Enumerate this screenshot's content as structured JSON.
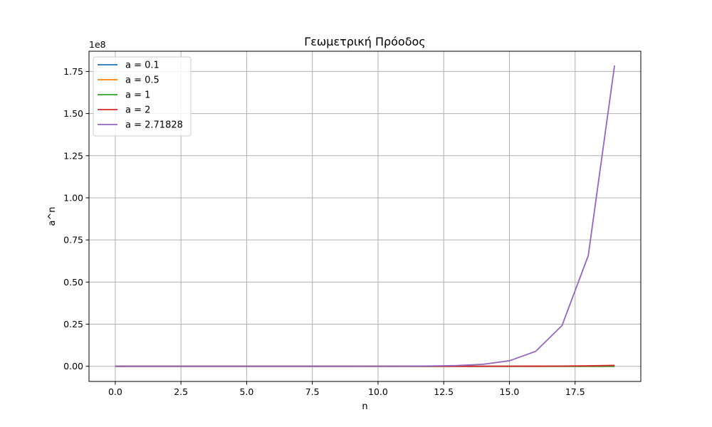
{
  "chart_data": {
    "type": "line",
    "title": "Γεωμετρική Πρόοδος",
    "xlabel": "n",
    "ylabel": "a^n",
    "y_offset_text": "1e8",
    "y_scale": 100000000,
    "xlim": [
      -1,
      20
    ],
    "ylim": [
      -0.09,
      1.87
    ],
    "xticks": [
      0.0,
      2.5,
      5.0,
      7.5,
      10.0,
      12.5,
      15.0,
      17.5
    ],
    "xtick_labels": [
      "0.0",
      "2.5",
      "5.0",
      "7.5",
      "10.0",
      "12.5",
      "15.0",
      "17.5"
    ],
    "yticks": [
      0.0,
      0.25,
      0.5,
      0.75,
      1.0,
      1.25,
      1.5,
      1.75
    ],
    "ytick_labels": [
      "0.00",
      "0.25",
      "0.50",
      "0.75",
      "1.00",
      "1.25",
      "1.50",
      "1.75"
    ],
    "grid": true,
    "legend_position": "top-left",
    "x": [
      0,
      1,
      2,
      3,
      4,
      5,
      6,
      7,
      8,
      9,
      10,
      11,
      12,
      13,
      14,
      15,
      16,
      17,
      18,
      19
    ],
    "series": [
      {
        "name": "a = 0.1",
        "color": "#1f77b4",
        "values": [
          1,
          0.1,
          0.01,
          0.001,
          0.0001,
          1e-05,
          1e-06,
          1e-07,
          1e-08,
          1e-09,
          0,
          0,
          0,
          0,
          0,
          0,
          0,
          0,
          0,
          0
        ]
      },
      {
        "name": "a = 0.5",
        "color": "#ff7f0e",
        "values": [
          1,
          0.5,
          0.25,
          0.125,
          0.0625,
          0.03125,
          0.015625,
          0.0078125,
          0.00390625,
          0.001953125,
          0.0009765625,
          0.00048828125,
          0.000244140625,
          0.0001220703125,
          6.103515625e-05,
          3.0517578125e-05,
          1.52587890625e-05,
          7.62939453125e-06,
          3.814697265625e-06,
          1.9073486328125e-06
        ]
      },
      {
        "name": "a = 1",
        "color": "#2ca02c",
        "values": [
          1,
          1,
          1,
          1,
          1,
          1,
          1,
          1,
          1,
          1,
          1,
          1,
          1,
          1,
          1,
          1,
          1,
          1,
          1,
          1
        ]
      },
      {
        "name": "a = 2",
        "color": "#d62728",
        "values": [
          1,
          2,
          4,
          8,
          16,
          32,
          64,
          128,
          256,
          512,
          1024,
          2048,
          4096,
          8192,
          16384,
          32768,
          65536,
          131072,
          262144,
          524288
        ]
      },
      {
        "name": "a = 2.71828",
        "color": "#9467bd",
        "values": [
          1,
          2.71828,
          7.389,
          20.09,
          54.6,
          148.4,
          403.4,
          1096.6,
          2981,
          8103,
          22026,
          59874,
          162755,
          442413,
          1202604,
          3269017,
          8886111,
          24154953,
          65659969,
          178482301
        ]
      }
    ]
  }
}
